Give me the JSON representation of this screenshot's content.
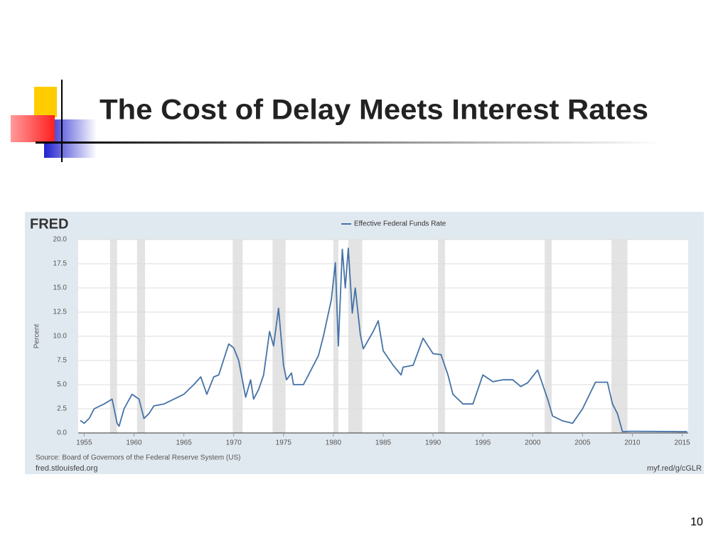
{
  "slide": {
    "title": "The Cost of Delay Meets Interest Rates",
    "page_number": "10"
  },
  "chart_data": {
    "type": "line",
    "brand": "FRED",
    "ylabel": "Percent",
    "source": "Source: Board of Governors of the Federal Reserve System (US)",
    "site": "fred.stlouisfed.org",
    "link": "myf.red/g/cGLR",
    "xlim": [
      1954.4,
      2015.6
    ],
    "ylim": [
      0,
      20
    ],
    "xticks": [
      1955,
      1960,
      1965,
      1970,
      1975,
      1980,
      1985,
      1990,
      1995,
      2000,
      2005,
      2010,
      2015
    ],
    "yticks": [
      {
        "value": 0,
        "label": "0.0"
      },
      2.5,
      {
        "value": 5,
        "label": "5.0"
      },
      7.5,
      {
        "value": 10,
        "label": "10.0"
      },
      12.5,
      {
        "value": 15,
        "label": "15.0"
      },
      17.5,
      {
        "value": 20,
        "label": "20.0"
      }
    ],
    "grid": true,
    "recessions": [
      [
        1957.6,
        1958.3
      ],
      [
        1960.3,
        1961.1
      ],
      [
        1969.9,
        1970.9
      ],
      [
        1973.9,
        1975.2
      ],
      [
        1980.0,
        1980.5
      ],
      [
        1981.5,
        1982.9
      ],
      [
        1990.5,
        1991.2
      ],
      [
        2001.2,
        2001.9
      ],
      [
        2007.9,
        2009.5
      ]
    ],
    "series": [
      {
        "name": "Effective Federal Funds Rate",
        "color": "#4572a7",
        "x": [
          1954.6,
          1955.0,
          1955.5,
          1956.0,
          1957.0,
          1957.8,
          1958.3,
          1958.5,
          1959.0,
          1959.8,
          1960.5,
          1961.0,
          1961.5,
          1962.0,
          1963.0,
          1964.0,
          1965.0,
          1966.0,
          1966.7,
          1967.3,
          1968.0,
          1968.5,
          1969.5,
          1970.0,
          1970.5,
          1971.2,
          1971.7,
          1972.0,
          1972.5,
          1973.0,
          1973.6,
          1974.0,
          1974.5,
          1975.0,
          1975.3,
          1975.8,
          1976.0,
          1977.0,
          1977.8,
          1978.5,
          1979.0,
          1979.8,
          1980.2,
          1980.5,
          1980.9,
          1981.2,
          1981.5,
          1981.9,
          1982.2,
          1982.7,
          1983.0,
          1984.0,
          1984.5,
          1985.0,
          1986.0,
          1986.8,
          1987.0,
          1988.0,
          1989.0,
          1990.0,
          1990.8,
          1991.5,
          1992.0,
          1993.0,
          1994.0,
          1995.0,
          1996.0,
          1997.0,
          1998.0,
          1998.8,
          1999.5,
          2000.5,
          2001.5,
          2002.0,
          2003.0,
          2004.0,
          2005.0,
          2006.3,
          2007.5,
          2008.0,
          2008.5,
          2009.0,
          2010.0,
          2015.0,
          2015.5
        ],
        "values": [
          1.3,
          1.0,
          1.5,
          2.5,
          3.0,
          3.5,
          1.0,
          0.7,
          2.5,
          4.0,
          3.5,
          1.5,
          2.0,
          2.8,
          3.0,
          3.5,
          4.0,
          5.0,
          5.8,
          4.0,
          5.8,
          6.0,
          9.2,
          8.8,
          7.5,
          3.7,
          5.5,
          3.5,
          4.5,
          6.0,
          10.5,
          9.0,
          12.9,
          7.0,
          5.5,
          6.2,
          5.0,
          5.0,
          6.6,
          8.0,
          10.0,
          13.8,
          17.6,
          9.0,
          19.0,
          15.0,
          19.1,
          12.4,
          15.0,
          10.2,
          8.7,
          10.5,
          11.6,
          8.5,
          7.0,
          6.0,
          6.8,
          7.0,
          9.8,
          8.2,
          8.1,
          6.0,
          4.0,
          3.0,
          3.0,
          6.0,
          5.3,
          5.5,
          5.5,
          4.8,
          5.2,
          6.5,
          3.5,
          1.75,
          1.25,
          1.0,
          2.5,
          5.25,
          5.25,
          3.0,
          2.0,
          0.15,
          0.18,
          0.13,
          0.13
        ]
      }
    ]
  }
}
